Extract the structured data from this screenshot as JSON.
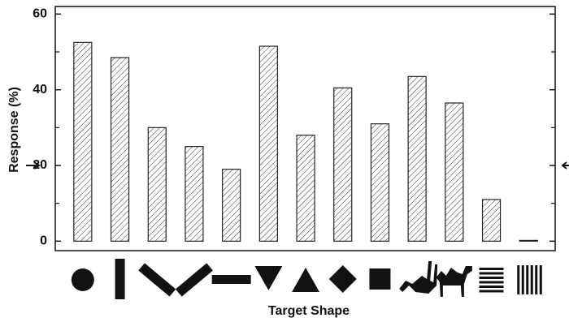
{
  "chart_data": {
    "type": "bar",
    "x_label": "Target Shape",
    "y_label": "Response (%)",
    "categories": [
      null,
      null,
      null,
      null,
      null,
      null,
      null,
      null,
      null,
      null,
      null,
      null,
      null
    ],
    "values": [
      52.5,
      48.5,
      30,
      25,
      19,
      51.5,
      28,
      40.5,
      31,
      43.5,
      36.5,
      11,
      0.2
    ],
    "ylim": [
      -2.5,
      62
    ],
    "yticks": [
      0,
      20,
      40,
      60
    ],
    "minor_yticks": [
      10,
      30,
      50
    ],
    "reference_line": 20,
    "color": "#222"
  }
}
